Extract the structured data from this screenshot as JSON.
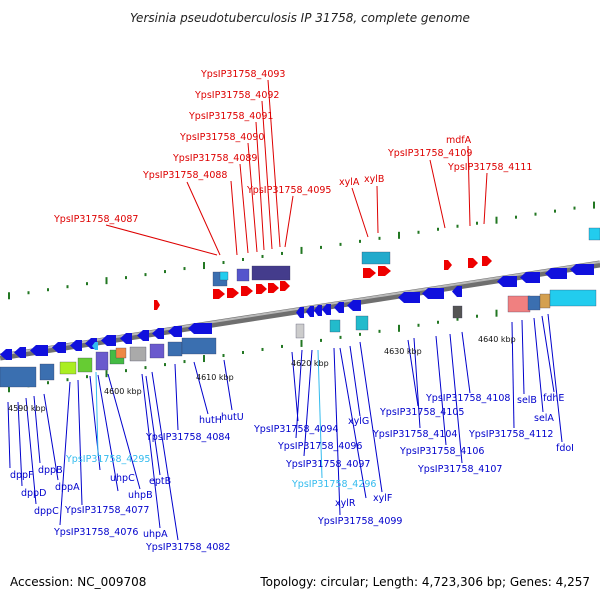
{
  "title": "Yersinia pseudotuberculosis IP 31758, complete genome",
  "footer": {
    "accession": "Accession: NC_009708",
    "summary": "Topology: circular; Length: 4,723,306 bp; Genes: 4,257"
  },
  "colors": {
    "forward_label": "#dd0000",
    "reverse_label": "#0000cc",
    "rna_label": "#33bbee",
    "forward_gene": "#ee0000",
    "reverse_gene": "#1010dd",
    "axis": "#888888",
    "tick": "#227722"
  },
  "scale_labels": [
    "4590 kbp",
    "4600 kbp",
    "4610 kbp",
    "4620 kbp",
    "4630 kbp",
    "4640 kbp"
  ],
  "labels_top": [
    "YpsIP31758_4093",
    "YpsIP31758_4092",
    "YpsIP31758_4091",
    "YpsIP31758_4090",
    "YpsIP31758_4089",
    "YpsIP31758_4088",
    "YpsIP31758_4095",
    "YpsIP31758_4087",
    "xylA",
    "xylB",
    "mdfA",
    "YpsIP31758_4109",
    "YpsIP31758_4111"
  ],
  "labels_bottom": [
    "dppF",
    "dppD",
    "dppC",
    "dppB",
    "dppA",
    "YpsIP31758_4295",
    "uhpC",
    "uhpB",
    "YpsIP31758_4077",
    "YpsIP31758_4076",
    "eptB",
    "uhpA",
    "YpsIP31758_4082",
    "hutH",
    "hutU",
    "YpsIP31758_4084",
    "YpsIP31758_4094",
    "YpsIP31758_4096",
    "YpsIP31758_4097",
    "YpsIP31758_4296",
    "xylR",
    "xylG",
    "YpsIP31758_4099",
    "xylF",
    "YpsIP31758_4105",
    "YpsIP31758_4104",
    "YpsIP31758_4106",
    "YpsIP31758_4107",
    "YpsIP31758_4108",
    "selB",
    "selA",
    "YpsIP31758_4112",
    "fdhE",
    "fdoI"
  ]
}
